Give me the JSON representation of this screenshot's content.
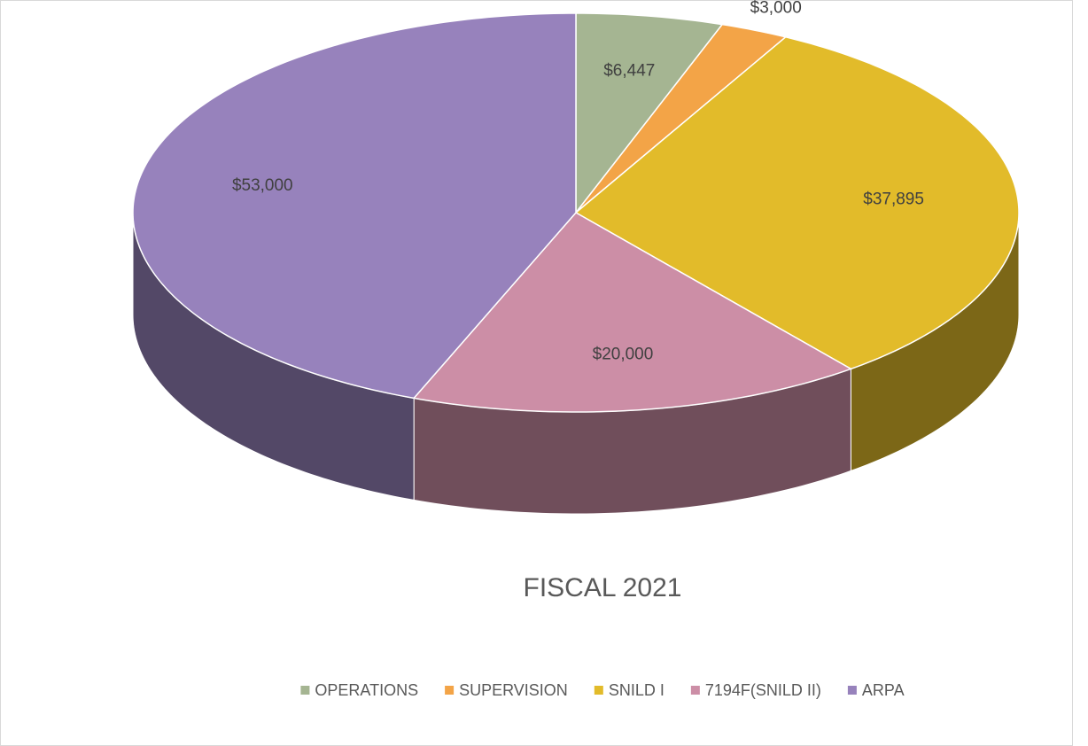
{
  "chart_data": {
    "type": "pie",
    "title": "FISCAL 2021",
    "categories": [
      "OPERATIONS",
      "SUPERVISION",
      "SNILD I",
      "7194F(SNILD II)",
      "ARPA"
    ],
    "values": [
      6447,
      3000,
      37895,
      20000,
      53000
    ],
    "value_labels": [
      "$6,447",
      "$3,000",
      "$37,895",
      "$20,000",
      "$53,000"
    ],
    "colors": [
      "#a5b592",
      "#f3a447",
      "#e2bb2a",
      "#cc8ea6",
      "#9782bc"
    ],
    "legend": "bottom"
  }
}
